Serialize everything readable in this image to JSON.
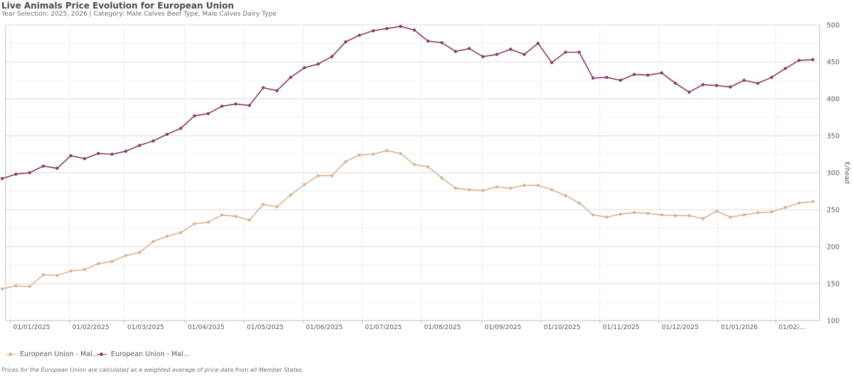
{
  "title": "Live Animals Price Evolution for European Union",
  "subtitle": "Year Selection: 2025, 2026 | Category: Male Calves Beef Type, Male Calves Dairy Type",
  "footnote": "Prices for the European Union are calculated as a weighted average of price data from all Member States.",
  "chart_data": {
    "type": "line",
    "title": "Live Animals Price Evolution for European Union",
    "xlabel": "",
    "ylabel": "€/head",
    "ylim": [
      100,
      500
    ],
    "yticks": [
      100,
      150,
      200,
      250,
      300,
      350,
      400,
      450,
      500
    ],
    "grid": true,
    "legend_position": "bottom-left",
    "x_tick_labels": [
      "01/01/2025",
      "01/02/2025",
      "01/03/2025",
      "01/04/2025",
      "01/05/2025",
      "01/06/2025",
      "01/07/2025",
      "01/08/2025",
      "01/09/2025",
      "01/10/2025",
      "01/11/2025",
      "01/12/2025",
      "01/01/2026",
      "01/02/..."
    ],
    "x_tick_weeks": [
      0.6,
      4.9,
      8.9,
      13.3,
      17.6,
      21.9,
      26.2,
      30.5,
      34.9,
      39.2,
      43.5,
      47.8,
      52.1,
      56.3
    ],
    "series": [
      {
        "name": "European Union - Mal...",
        "color": "#d8b497",
        "values": [
          143,
          147,
          146,
          162,
          161,
          167,
          169,
          177,
          180,
          188,
          192,
          207,
          214,
          219,
          231,
          233,
          243,
          241,
          236,
          257,
          254,
          270,
          284,
          296,
          296,
          315,
          324,
          325,
          330,
          326,
          311,
          308,
          293,
          279,
          277,
          276,
          281,
          279,
          283,
          283,
          277,
          269,
          259,
          243,
          240,
          244,
          246,
          245,
          243,
          242,
          242,
          238,
          248,
          240,
          243,
          246,
          247,
          253,
          259,
          261
        ]
      },
      {
        "name": "European Union - Mal...",
        "color": "#8c3b69",
        "values": [
          292,
          298,
          300,
          309,
          306,
          323,
          319,
          326,
          325,
          329,
          337,
          343,
          352,
          360,
          377,
          380,
          390,
          393,
          391,
          415,
          411,
          429,
          442,
          447,
          457,
          477,
          486,
          492,
          495,
          498,
          493,
          478,
          476,
          464,
          468,
          457,
          460,
          467,
          460,
          475,
          449,
          463,
          463,
          428,
          429,
          425,
          433,
          432,
          435,
          421,
          409,
          419,
          418,
          416,
          425,
          421,
          429,
          441,
          452,
          453
        ]
      }
    ]
  }
}
